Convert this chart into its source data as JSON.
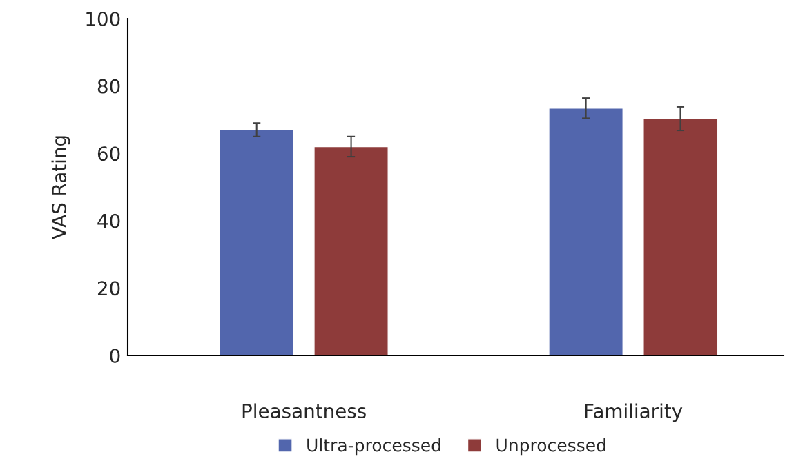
{
  "chart_data": {
    "type": "bar",
    "ylabel": "VAS Rating",
    "categories": [
      "Pleasantness",
      "Familiarity"
    ],
    "series": [
      {
        "name": "Ultra-processed",
        "color": "#5266ad",
        "values": [
          67,
          73.4
        ],
        "errors": [
          2,
          3
        ]
      },
      {
        "name": "Unprocessed",
        "color": "#8e3b3a",
        "values": [
          62,
          70.3
        ],
        "errors": [
          3,
          3.5
        ]
      }
    ],
    "ylim": [
      0,
      100
    ],
    "yticks": [
      0,
      20,
      40,
      60,
      80,
      100
    ],
    "grid": false,
    "legend": "bottom"
  }
}
